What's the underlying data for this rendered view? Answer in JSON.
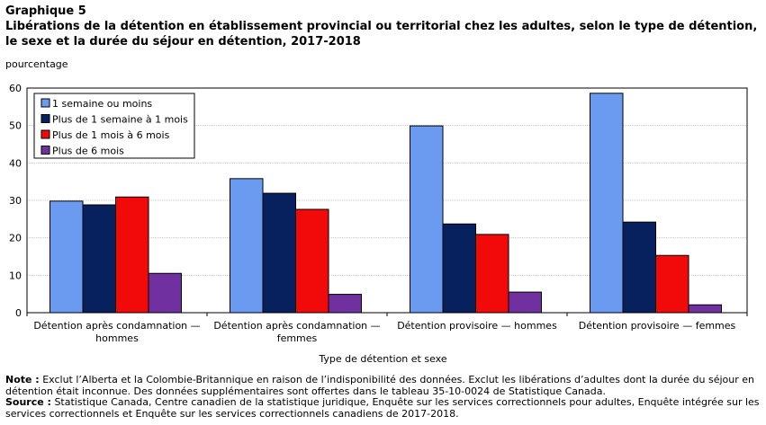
{
  "header": {
    "graph_label": "Graphique  5",
    "title": "Libérations  de la détention en établissement provincial ou territorial  chez les adultes, selon le type de détention, le sexe et la durée du séjour en détention, 2017-2018"
  },
  "notes": {
    "note_label": "Note :",
    "note_text": " Exclut l’Alberta et la Colombie-Britannique en raison de l’indisponibilité des données. Exclut les libérations d’adultes dont la durée du séjour en détention était inconnue. Des données supplémentaires sont offertes dans le tableau 35-10-0024 de Statistique Canada.",
    "source_label": "Source :",
    "source_text": " Statistique Canada, Centre canadien de la statistique juridique, Enquête sur les services correctionnels pour adultes, Enquête intégrée sur les services correctionnels et Enquête sur les services correctionnels canadiens de 2017-2018."
  },
  "chart_data": {
    "type": "bar",
    "ylabel": "pourcentage",
    "xlabel": "Type de détention et sexe",
    "ylim": [
      0,
      60
    ],
    "yticks": [
      0,
      10,
      20,
      30,
      40,
      50,
      60
    ],
    "grid": true,
    "legend_position": "top-left",
    "categories": [
      [
        "Détention après condamnation —",
        "hommes"
      ],
      [
        "Détention après condamnation —",
        "femmes"
      ],
      [
        "Détention provisoire — hommes"
      ],
      [
        "Détention provisoire — femmes"
      ]
    ],
    "series": [
      {
        "name": "1 semaine ou moins",
        "color": "#6b9bf0",
        "values": [
          29.8,
          35.8,
          49.9,
          58.6
        ]
      },
      {
        "name": "Plus de 1 semaine à 1 mois",
        "color": "#07215f",
        "values": [
          28.8,
          31.9,
          23.7,
          24.2
        ]
      },
      {
        "name": "Plus de 1 mois à 6 mois",
        "color": "#f20a0a",
        "values": [
          30.9,
          27.6,
          20.9,
          15.3
        ]
      },
      {
        "name": "Plus de 6 mois",
        "color": "#7030a0",
        "values": [
          10.5,
          4.9,
          5.5,
          2.1
        ]
      }
    ]
  }
}
